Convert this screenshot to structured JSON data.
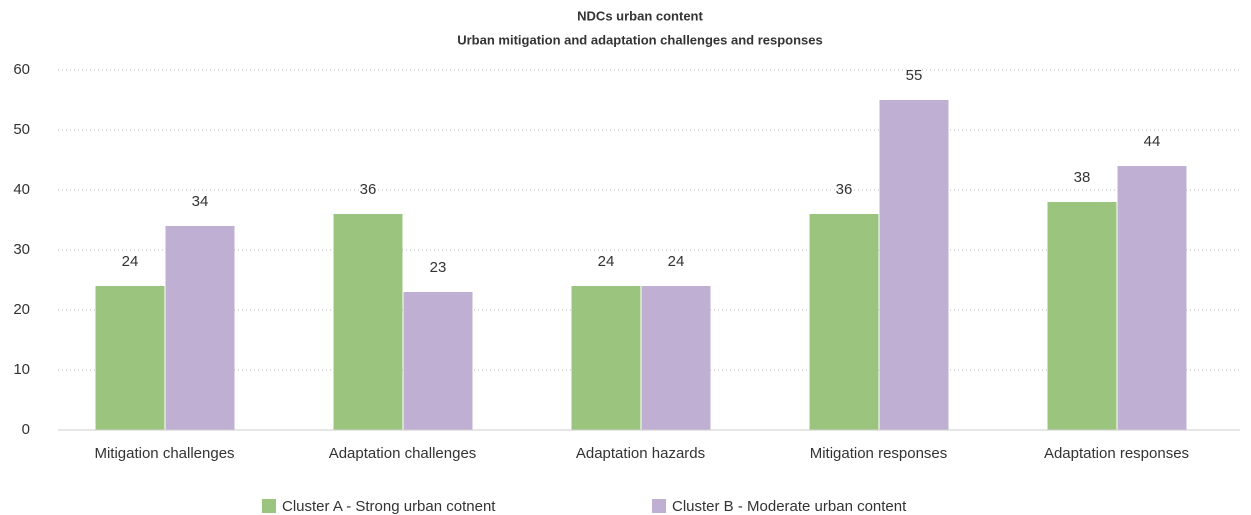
{
  "chart_data": {
    "type": "bar",
    "title": "NDCs urban content",
    "subtitle": "Urban mitigation and adaptation challenges and responses",
    "categories": [
      "Mitigation challenges",
      "Adaptation challenges",
      "Adaptation hazards",
      "Mitigation responses",
      "Adaptation responses"
    ],
    "series": [
      {
        "name": "Cluster A - Strong urban cotnent",
        "color": "#9bc57f",
        "values": [
          24,
          36,
          24,
          36,
          38
        ]
      },
      {
        "name": "Cluster B - Moderate urban content",
        "color": "#bfb0d3",
        "values": [
          34,
          23,
          24,
          55,
          44
        ]
      }
    ],
    "ylim": [
      0,
      60
    ],
    "yticks": [
      0,
      10,
      20,
      30,
      40,
      50,
      60
    ],
    "grid": true,
    "legend": "bottom"
  }
}
